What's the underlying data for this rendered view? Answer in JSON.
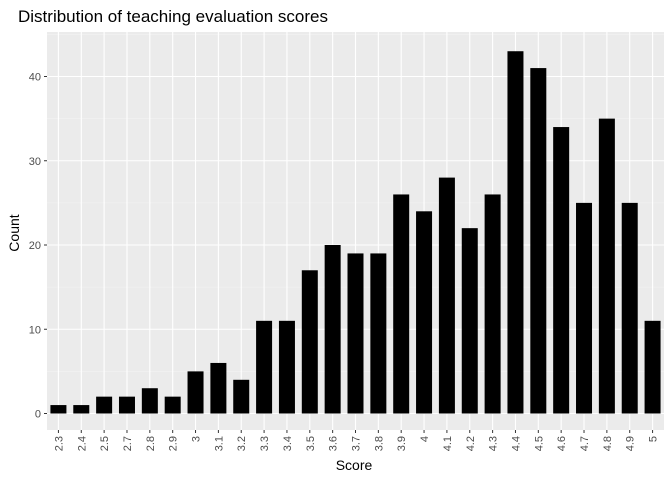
{
  "chart_data": {
    "type": "bar",
    "title": "Distribution of teaching evaluation scores",
    "xlabel": "Score",
    "ylabel": "Count",
    "categories": [
      "2.3",
      "2.4",
      "2.5",
      "2.7",
      "2.8",
      "2.9",
      "3",
      "3.1",
      "3.2",
      "3.3",
      "3.4",
      "3.5",
      "3.6",
      "3.7",
      "3.8",
      "3.9",
      "4",
      "4.1",
      "4.2",
      "4.3",
      "4.4",
      "4.5",
      "4.6",
      "4.7",
      "4.8",
      "4.9",
      "5"
    ],
    "values": [
      1,
      1,
      2,
      2,
      3,
      2,
      5,
      6,
      4,
      11,
      11,
      17,
      20,
      19,
      19,
      26,
      24,
      28,
      22,
      26,
      43,
      41,
      34,
      25,
      35,
      25,
      11
    ],
    "ylim": [
      0,
      45
    ],
    "yticks": [
      0,
      10,
      20,
      30,
      40
    ],
    "grid": true,
    "colors": {
      "bar": "#000000",
      "panel": "#ebebeb",
      "grid_major": "#ffffff"
    }
  }
}
